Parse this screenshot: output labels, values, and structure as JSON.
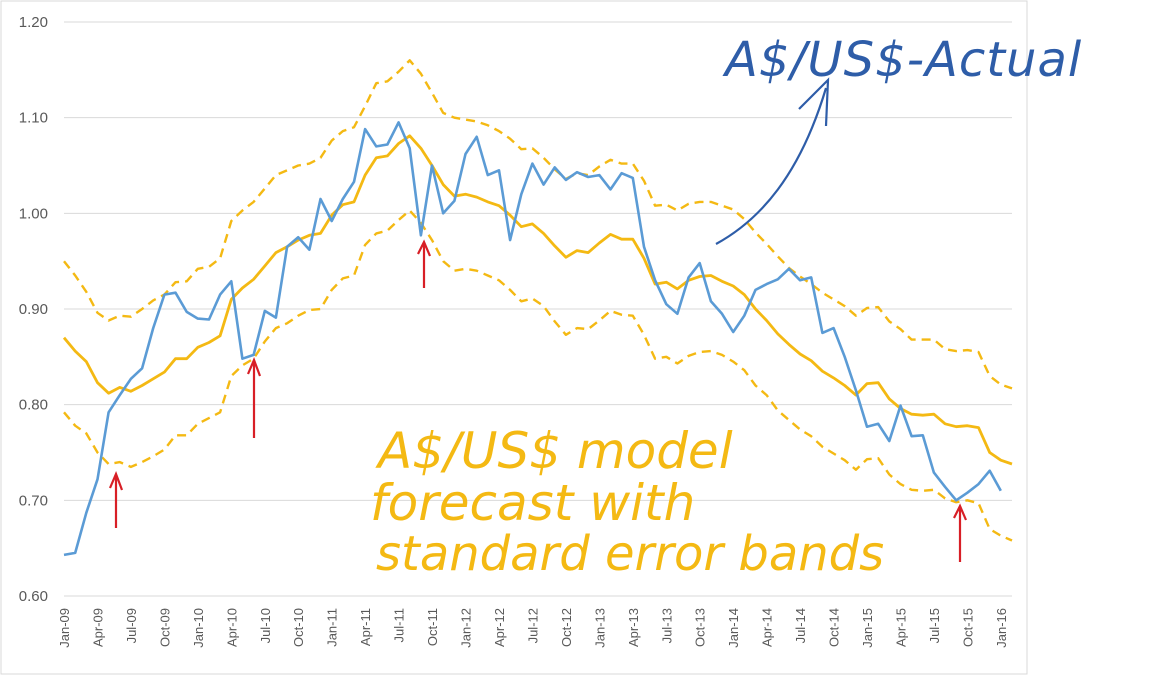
{
  "chart_data": {
    "type": "line",
    "title": "",
    "xlabel": "",
    "ylabel": "",
    "ylim": [
      0.6,
      1.2
    ],
    "yticks": [
      "0.60",
      "0.70",
      "0.80",
      "0.90",
      "1.00",
      "1.10",
      "1.20"
    ],
    "grid": "horizontal",
    "legend": "none",
    "x_tick_labels": [
      "Jan-09",
      "Apr-09",
      "Jul-09",
      "Oct-09",
      "Jan-10",
      "Apr-10",
      "Jul-10",
      "Oct-10",
      "Jan-11",
      "Apr-11",
      "Jul-11",
      "Oct-11",
      "Jan-12",
      "Apr-12",
      "Jul-12",
      "Oct-12",
      "Jan-13",
      "Apr-13",
      "Jul-13",
      "Oct-13",
      "Jan-14",
      "Apr-14",
      "Jul-14",
      "Oct-14",
      "Jan-15",
      "Apr-15",
      "Jul-15",
      "Oct-15",
      "Jan-16"
    ],
    "colors": {
      "actual": "#5b9bd5",
      "model": "#f4b913",
      "upper": "#f4b913",
      "lower": "#f4b913",
      "annotation_blue": "#2e5da8",
      "annotation_red": "#d81f26",
      "annotation_yellow": "#f4b913",
      "grid": "#d9d9d9"
    },
    "series": [
      {
        "key": "actual",
        "values": [
          0.643,
          0.645,
          0.687,
          0.722,
          0.792,
          0.81,
          0.827,
          0.838,
          0.88,
          0.915,
          0.917,
          0.897,
          0.89,
          0.889,
          0.915,
          0.929,
          0.848,
          0.852,
          0.898,
          0.891,
          0.965,
          0.975,
          0.962,
          1.015,
          0.992,
          1.015,
          1.033,
          1.088,
          1.07,
          1.072,
          1.095,
          1.068,
          0.977,
          1.05,
          1.0,
          1.013,
          1.062,
          1.08,
          1.04,
          1.045,
          0.972,
          1.02,
          1.052,
          1.03,
          1.048,
          1.035,
          1.043,
          1.038,
          1.04,
          1.025,
          1.042,
          1.037,
          0.965,
          0.93,
          0.905,
          0.895,
          0.933,
          0.948,
          0.908,
          0.895,
          0.876,
          0.893,
          0.92,
          0.926,
          0.931,
          0.942,
          0.93,
          0.933,
          0.875,
          0.88,
          0.85,
          0.815,
          0.777,
          0.78,
          0.762,
          0.799,
          0.767,
          0.768,
          0.729,
          0.714,
          0.7,
          0.708,
          0.717,
          0.731,
          0.71
        ]
      },
      {
        "key": "model",
        "values": [
          0.87,
          0.856,
          0.845,
          0.823,
          0.812,
          0.818,
          0.814,
          0.82,
          0.827,
          0.834,
          0.848,
          0.848,
          0.86,
          0.865,
          0.872,
          0.91,
          0.922,
          0.931,
          0.945,
          0.959,
          0.965,
          0.972,
          0.977,
          0.979,
          0.998,
          1.009,
          1.012,
          1.04,
          1.058,
          1.06,
          1.073,
          1.081,
          1.068,
          1.05,
          1.03,
          1.018,
          1.02,
          1.017,
          1.012,
          1.008,
          0.998,
          0.986,
          0.989,
          0.979,
          0.966,
          0.954,
          0.961,
          0.959,
          0.969,
          0.978,
          0.973,
          0.973,
          0.953,
          0.926,
          0.928,
          0.921,
          0.93,
          0.934,
          0.935,
          0.929,
          0.924,
          0.915,
          0.9,
          0.888,
          0.874,
          0.863,
          0.853,
          0.846,
          0.835,
          0.828,
          0.82,
          0.81,
          0.822,
          0.823,
          0.806,
          0.796,
          0.79,
          0.789,
          0.79,
          0.78,
          0.777,
          0.778,
          0.776,
          0.75,
          0.742,
          0.738
        ]
      },
      {
        "key": "upper",
        "style": "dashed",
        "values": [
          0.95,
          0.935,
          0.918,
          0.896,
          0.888,
          0.893,
          0.892,
          0.9,
          0.909,
          0.915,
          0.928,
          0.929,
          0.942,
          0.944,
          0.953,
          0.992,
          1.003,
          1.012,
          1.026,
          1.04,
          1.045,
          1.05,
          1.052,
          1.058,
          1.076,
          1.086,
          1.09,
          1.112,
          1.136,
          1.138,
          1.148,
          1.16,
          1.146,
          1.126,
          1.105,
          1.1,
          1.098,
          1.096,
          1.092,
          1.086,
          1.078,
          1.067,
          1.068,
          1.058,
          1.046,
          1.036,
          1.042,
          1.04,
          1.049,
          1.056,
          1.052,
          1.052,
          1.034,
          1.008,
          1.009,
          1.003,
          1.01,
          1.012,
          1.012,
          1.008,
          1.004,
          0.994,
          0.98,
          0.968,
          0.955,
          0.943,
          0.934,
          0.926,
          0.917,
          0.91,
          0.903,
          0.893,
          0.901,
          0.902,
          0.887,
          0.879,
          0.868,
          0.868,
          0.868,
          0.858,
          0.856,
          0.857,
          0.855,
          0.83,
          0.821,
          0.817
        ]
      },
      {
        "key": "lower",
        "style": "dashed",
        "values": [
          0.792,
          0.778,
          0.77,
          0.75,
          0.738,
          0.74,
          0.735,
          0.74,
          0.746,
          0.753,
          0.768,
          0.768,
          0.78,
          0.786,
          0.792,
          0.83,
          0.841,
          0.848,
          0.866,
          0.88,
          0.885,
          0.893,
          0.899,
          0.9,
          0.92,
          0.932,
          0.935,
          0.967,
          0.979,
          0.982,
          0.993,
          1.003,
          0.99,
          0.972,
          0.95,
          0.94,
          0.942,
          0.94,
          0.935,
          0.93,
          0.92,
          0.908,
          0.911,
          0.903,
          0.887,
          0.873,
          0.88,
          0.879,
          0.888,
          0.898,
          0.894,
          0.893,
          0.873,
          0.848,
          0.85,
          0.843,
          0.851,
          0.855,
          0.856,
          0.852,
          0.845,
          0.836,
          0.82,
          0.81,
          0.794,
          0.784,
          0.774,
          0.767,
          0.756,
          0.749,
          0.742,
          0.732,
          0.743,
          0.744,
          0.727,
          0.717,
          0.711,
          0.71,
          0.711,
          0.702,
          0.698,
          0.7,
          0.697,
          0.67,
          0.663,
          0.658
        ]
      }
    ]
  },
  "annotations": {
    "actual_label": "A$/US$-Actual",
    "model_label_line1": "A$/US$ model",
    "model_label_line2": "forecast with",
    "model_label_line3": "standard error bands"
  }
}
